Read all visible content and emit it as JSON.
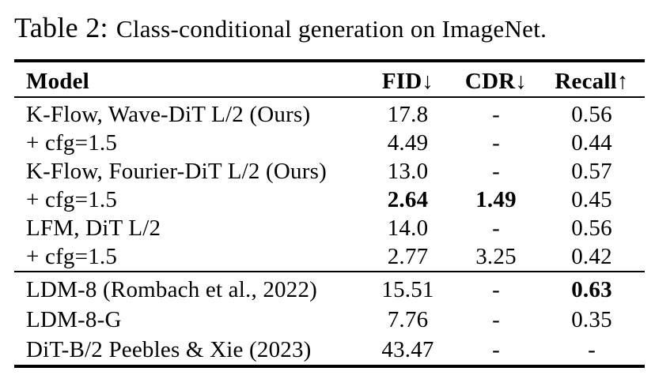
{
  "caption": {
    "prefix": "Table 2:",
    "text": "Class-conditional generation on ImageNet."
  },
  "table": {
    "columns": [
      {
        "label": "Model"
      },
      {
        "label": "FID↓"
      },
      {
        "label": "CDR↓"
      },
      {
        "label": "Recall↑"
      }
    ],
    "groups": [
      {
        "rows": [
          {
            "model": "K-Flow, Wave-DiT L/2 (Ours)",
            "fid": "17.8",
            "cdr": "-",
            "recall": "0.56",
            "bold": []
          },
          {
            "model": "+ cfg=1.5",
            "fid": "4.49",
            "cdr": "-",
            "recall": "0.44",
            "bold": []
          },
          {
            "model": "K-Flow, Fourier-DiT L/2 (Ours)",
            "fid": "13.0",
            "cdr": "-",
            "recall": "0.57",
            "bold": []
          },
          {
            "model": "+ cfg=1.5",
            "fid": "2.64",
            "cdr": "1.49",
            "recall": "0.45",
            "bold": [
              "fid",
              "cdr"
            ]
          },
          {
            "model": "LFM, DiT L/2",
            "fid": "14.0",
            "cdr": "-",
            "recall": "0.56",
            "bold": []
          },
          {
            "model": "+ cfg=1.5",
            "fid": "2.77",
            "cdr": "3.25",
            "recall": "0.42",
            "bold": []
          }
        ]
      },
      {
        "rows": [
          {
            "model": "LDM-8 (Rombach et al., 2022)",
            "fid": "15.51",
            "cdr": "-",
            "recall": "0.63",
            "bold": [
              "recall"
            ]
          },
          {
            "model": "LDM-8-G",
            "fid": "7.76",
            "cdr": "-",
            "recall": "0.35",
            "bold": []
          },
          {
            "model": "DiT-B/2 Peebles & Xie (2023)",
            "fid": "43.47",
            "cdr": "-",
            "recall": "-",
            "bold": []
          }
        ]
      }
    ]
  },
  "colors": {
    "text": "#000000",
    "background": "#ffffff",
    "rule": "#000000"
  }
}
